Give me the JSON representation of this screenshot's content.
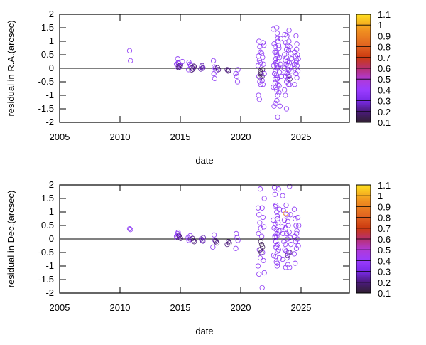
{
  "chart_data": [
    {
      "type": "scatter",
      "xlabel": "date",
      "ylabel": "residual in R.A.(arcsec)",
      "xlim": [
        2005,
        2029
      ],
      "ylim": [
        -2,
        2
      ],
      "xticks": [
        "2005",
        "2010",
        "2015",
        "2020",
        "2025"
      ],
      "yticks": [
        "-2",
        "-1.5",
        "-1",
        "-0.5",
        "0",
        "0.5",
        "1",
        "1.5",
        "2"
      ],
      "zero_line": true,
      "grid": false,
      "marker": "open-circle",
      "colorbar": {
        "range": [
          0.1,
          1.1
        ],
        "ticks": [
          "0.1",
          "0.2",
          "0.3",
          "0.4",
          "0.5",
          "0.6",
          "0.7",
          "0.8",
          "0.9",
          "1",
          "1.1"
        ],
        "placement": "right"
      },
      "groups": [
        {
          "date": 2010.9,
          "c": 0.35,
          "residuals": [
            0.65,
            0.28
          ]
        },
        {
          "date": 2014.75,
          "c": 0.35,
          "residuals": [
            0.35,
            0.18,
            0.15,
            0.05,
            0.2
          ]
        },
        {
          "date": 2014.95,
          "c": 0.2,
          "residuals": [
            0.1,
            0.05,
            0.12,
            0.03
          ]
        },
        {
          "date": 2015.1,
          "c": 0.35,
          "residuals": [
            0.25,
            0.08
          ]
        },
        {
          "date": 2015.75,
          "c": 0.35,
          "residuals": [
            0.22,
            0.15,
            0.1,
            -0.05
          ]
        },
        {
          "date": 2016.05,
          "c": 0.2,
          "residuals": [
            0.05,
            0.02,
            -0.03,
            0.08,
            -0.06
          ]
        },
        {
          "date": 2016.8,
          "c": 0.25,
          "residuals": [
            0.1,
            0.02,
            -0.03,
            0.05,
            0.0
          ]
        },
        {
          "date": 2017.85,
          "c": 0.35,
          "residuals": [
            0.28,
            0.05,
            0.0,
            -0.1,
            -0.2,
            -0.38
          ]
        },
        {
          "date": 2018.05,
          "c": 0.2,
          "residuals": [
            0.02,
            -0.05
          ]
        },
        {
          "date": 2018.95,
          "c": 0.2,
          "residuals": [
            -0.05,
            -0.1,
            -0.08
          ]
        },
        {
          "date": 2019.7,
          "c": 0.35,
          "residuals": [
            -0.05,
            -0.2,
            -0.3,
            -0.5
          ]
        },
        {
          "date": 2021.55,
          "c": 0.35,
          "residuals": [
            1.0,
            0.8,
            0.6,
            0.45,
            0.3,
            0.2,
            0.1,
            -0.3,
            -0.5,
            -0.6,
            -1.0,
            -1.15
          ]
        },
        {
          "date": 2021.7,
          "c": 0.15,
          "residuals": [
            -0.05,
            -0.1,
            -0.2,
            -0.3,
            -0.35,
            -0.15
          ]
        },
        {
          "date": 2021.85,
          "c": 0.35,
          "residuals": [
            0.95,
            0.85,
            0.55,
            0.4,
            0.15,
            -0.2,
            -0.45,
            -0.6
          ]
        },
        {
          "date": 2022.8,
          "c": 0.35,
          "residuals": [
            1.45,
            0.9,
            0.6,
            0.35,
            0.1,
            -0.2,
            -0.4,
            -0.7,
            -1.4
          ]
        },
        {
          "date": 2022.95,
          "c": 0.35,
          "residuals": [
            1.5,
            1.1,
            0.8,
            0.6,
            0.45,
            0.3,
            0.2,
            0.1,
            0.0,
            -0.1,
            -0.25,
            -0.4,
            -0.55,
            -0.7,
            -0.8,
            -1.0,
            -1.3
          ]
        },
        {
          "date": 2023.1,
          "c": 0.35,
          "residuals": [
            1.3,
            1.0,
            0.75,
            0.5,
            0.25,
            0.05,
            -0.15,
            -0.35,
            -0.6,
            -0.9,
            -1.2,
            -1.8
          ]
        },
        {
          "date": 2023.25,
          "c": 0.35,
          "residuals": [
            1.1,
            0.85,
            0.4,
            0.15,
            -0.3,
            -0.65,
            -1.4
          ]
        },
        {
          "date": 2023.7,
          "c": 0.35,
          "residuals": [
            1.25,
            0.95,
            0.7,
            0.5,
            0.3,
            0.15,
            0.0,
            -0.15,
            -0.3,
            -0.5,
            -0.8,
            -1.0
          ]
        },
        {
          "date": 2023.9,
          "c": 0.35,
          "residuals": [
            1.4,
            1.2,
            0.85,
            0.65,
            0.4,
            0.25,
            0.1,
            -0.05,
            -0.2,
            -0.4,
            -0.6,
            -1.5
          ]
        },
        {
          "date": 2024.0,
          "c": 0.2,
          "residuals": [
            -0.3,
            -0.4
          ]
        },
        {
          "date": 2024.1,
          "c": 0.35,
          "residuals": [
            1.0,
            0.8,
            0.55,
            0.35,
            0.2,
            0.05,
            -0.1,
            -0.3,
            -0.6
          ]
        },
        {
          "date": 2024.55,
          "c": 0.35,
          "residuals": [
            1.2,
            0.9,
            0.6,
            0.45,
            0.3,
            0.15,
            0.0,
            -0.2,
            -0.35,
            -0.6
          ]
        },
        {
          "date": 2024.7,
          "c": 0.35,
          "residuals": [
            0.7,
            0.5,
            0.35,
            0.2,
            0.1,
            -0.1
          ]
        }
      ]
    },
    {
      "type": "scatter",
      "xlabel": "date",
      "ylabel": "residual in Dec.(arcsec)",
      "xlim": [
        2005,
        2029
      ],
      "ylim": [
        -2,
        2
      ],
      "xticks": [
        "2005",
        "2010",
        "2015",
        "2020",
        "2025"
      ],
      "yticks": [
        "-2",
        "-1.5",
        "-1",
        "-0.5",
        "0",
        "0.5",
        "1",
        "1.5",
        "2"
      ],
      "zero_line": true,
      "grid": false,
      "marker": "open-circle",
      "colorbar": {
        "range": [
          0.1,
          1.1
        ],
        "ticks": [
          "0.1",
          "0.2",
          "0.3",
          "0.4",
          "0.5",
          "0.6",
          "0.7",
          "0.8",
          "0.9",
          "1",
          "1.1"
        ],
        "placement": "right"
      },
      "groups": [
        {
          "date": 2010.9,
          "c": 0.35,
          "residuals": [
            0.38,
            0.35
          ]
        },
        {
          "date": 2014.75,
          "c": 0.35,
          "residuals": [
            0.2,
            0.15,
            0.1,
            0.05,
            0.25
          ]
        },
        {
          "date": 2014.95,
          "c": 0.2,
          "residuals": [
            0.12,
            0.08,
            0.02
          ]
        },
        {
          "date": 2015.75,
          "c": 0.35,
          "residuals": [
            0.12,
            0.05,
            -0.05,
            0.0
          ]
        },
        {
          "date": 2016.05,
          "c": 0.2,
          "residuals": [
            0.02,
            -0.05,
            -0.1
          ]
        },
        {
          "date": 2016.8,
          "c": 0.25,
          "residuals": [
            0.05,
            0.0,
            -0.05,
            -0.08
          ]
        },
        {
          "date": 2017.8,
          "c": 0.35,
          "residuals": [
            0.15,
            -0.05,
            -0.3
          ]
        },
        {
          "date": 2018.0,
          "c": 0.2,
          "residuals": [
            -0.05,
            -0.1,
            -0.15
          ]
        },
        {
          "date": 2018.95,
          "c": 0.2,
          "residuals": [
            -0.1,
            -0.15,
            -0.2
          ]
        },
        {
          "date": 2019.7,
          "c": 0.35,
          "residuals": [
            0.2,
            0.05,
            -0.05,
            -0.35
          ]
        },
        {
          "date": 2021.55,
          "c": 0.35,
          "residuals": [
            1.85,
            1.15,
            0.9,
            0.6,
            0.4,
            0.2,
            -0.4,
            -0.7,
            -1.0,
            -1.3
          ]
        },
        {
          "date": 2021.7,
          "c": 0.15,
          "residuals": [
            -0.1,
            -0.2,
            -0.3,
            -0.4,
            -0.5
          ]
        },
        {
          "date": 2021.85,
          "c": 0.35,
          "residuals": [
            1.5,
            1.15,
            0.8,
            0.45,
            0.1,
            -0.5,
            -0.8,
            -1.25,
            -1.8
          ]
        },
        {
          "date": 2022.8,
          "c": 0.35,
          "residuals": [
            1.9,
            1.2,
            0.7,
            0.4,
            0.1,
            -0.3,
            -0.6
          ]
        },
        {
          "date": 2022.95,
          "c": 0.35,
          "residuals": [
            1.65,
            1.25,
            1.0,
            0.75,
            0.55,
            0.35,
            0.2,
            0.05,
            -0.1,
            -0.25,
            -0.45,
            -0.65,
            -0.85,
            -1.0
          ]
        },
        {
          "date": 2023.1,
          "c": 0.35,
          "residuals": [
            1.85,
            1.1,
            0.85,
            0.6,
            0.3,
            0.1,
            -0.2,
            -0.4,
            -0.7,
            -0.9
          ]
        },
        {
          "date": 2023.55,
          "c": 0.35,
          "residuals": [
            1.6,
            1.05,
            0.7,
            0.45,
            0.2,
            -0.1,
            -0.4,
            -0.75
          ]
        },
        {
          "date": 2023.65,
          "c": 0.95,
          "residuals": [
            0.95
          ]
        },
        {
          "date": 2023.8,
          "c": 0.35,
          "residuals": [
            1.25,
            0.9,
            0.65,
            0.4,
            0.2,
            0.0,
            -0.2,
            -0.45,
            -0.7,
            -0.95,
            -1.05
          ]
        },
        {
          "date": 2023.95,
          "c": 0.2,
          "residuals": [
            -0.5,
            -0.6
          ]
        },
        {
          "date": 2024.05,
          "c": 0.35,
          "residuals": [
            1.95,
            0.9,
            0.5,
            0.25,
            0.05,
            -0.2,
            -0.5,
            -1.05
          ]
        },
        {
          "date": 2024.55,
          "c": 0.35,
          "residuals": [
            1.1,
            0.75,
            0.5,
            0.3,
            0.1,
            -0.1,
            -0.35,
            -0.55,
            -0.9
          ]
        },
        {
          "date": 2024.7,
          "c": 0.35,
          "residuals": [
            0.8,
            0.5,
            0.2,
            0.0,
            -0.25
          ]
        }
      ]
    }
  ]
}
